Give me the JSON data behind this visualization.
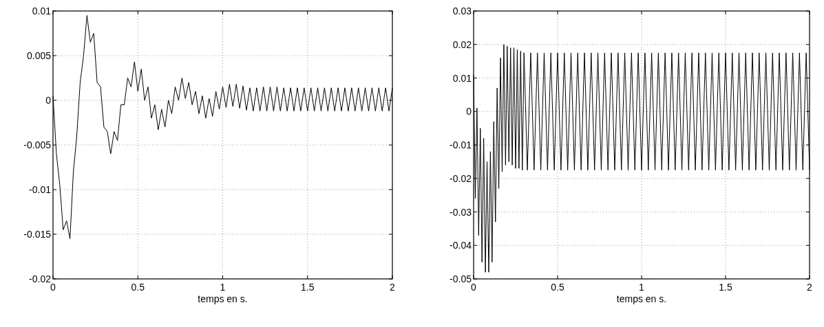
{
  "chart_data": [
    {
      "type": "line",
      "xlabel": "temps en s.",
      "xlim": [
        0,
        2
      ],
      "xticks": [
        0,
        0.5,
        1,
        1.5,
        2
      ],
      "ylim": [
        -0.02,
        0.01
      ],
      "yticks": [
        -0.02,
        -0.015,
        -0.01,
        -0.005,
        0,
        0.005,
        0.01
      ],
      "grid": true,
      "line_style": "solid",
      "series": [
        {
          "color": "#000000",
          "x": [
            0,
            0.02,
            0.04,
            0.06,
            0.08,
            0.1,
            0.12,
            0.14,
            0.16,
            0.18,
            0.2,
            0.22,
            0.24,
            0.26,
            0.28,
            0.3,
            0.32,
            0.34,
            0.36,
            0.38,
            0.4,
            0.42,
            0.44,
            0.46,
            0.48,
            0.5,
            0.52,
            0.54,
            0.56,
            0.58,
            0.6,
            0.62,
            0.64,
            0.66,
            0.68,
            0.7,
            0.72,
            0.74,
            0.76,
            0.78,
            0.8,
            0.82,
            0.84,
            0.86,
            0.88,
            0.9,
            0.92,
            0.94,
            0.96,
            0.98,
            1,
            1.02,
            1.04,
            1.06,
            1.08,
            1.1,
            1.12,
            1.14,
            1.16,
            1.18,
            1.2,
            1.22,
            1.24,
            1.26,
            1.28,
            1.3,
            1.32,
            1.34,
            1.36,
            1.38,
            1.4,
            1.42,
            1.44,
            1.46,
            1.48,
            1.5,
            1.52,
            1.54,
            1.56,
            1.58,
            1.6,
            1.62,
            1.64,
            1.66,
            1.68,
            1.7,
            1.72,
            1.74,
            1.76,
            1.78,
            1.8,
            1.82,
            1.84,
            1.86,
            1.88,
            1.9,
            1.92,
            1.94,
            1.96,
            1.98,
            2
          ],
          "values": [
            0.0005,
            -0.006,
            -0.0095,
            -0.0145,
            -0.0135,
            -0.0155,
            -0.008,
            -0.004,
            0.002,
            0.005,
            0.0095,
            0.0065,
            0.0075,
            0.002,
            0.0015,
            -0.003,
            -0.0035,
            -0.006,
            -0.0035,
            -0.0045,
            -0.0005,
            -0.0005,
            0.0025,
            0.0015,
            0.0043,
            0.001,
            0.0035,
            0,
            0.0015,
            -0.002,
            -0.0005,
            -0.0033,
            -0.001,
            -0.003,
            0,
            -0.0015,
            0.0015,
            0,
            0.0025,
            0.0002,
            0.002,
            -0.0005,
            0.001,
            -0.0015,
            0.0005,
            -0.002,
            0.0002,
            -0.0018,
            0.001,
            -0.001,
            0.0015,
            -0.0008,
            0.0018,
            -0.0007,
            0.0018,
            -0.0009,
            0.0016,
            -0.0011,
            0.0014,
            -0.0012,
            0.0014,
            -0.0012,
            0.0015,
            -0.0012,
            0.0015,
            -0.0012,
            0.0015,
            -0.0012,
            0.0014,
            -0.0012,
            0.0014,
            -0.0012,
            0.0014,
            -0.0012,
            0.0014,
            -0.0012,
            0.0014,
            -0.0012,
            0.0014,
            -0.0012,
            0.0014,
            -0.0012,
            0.0014,
            -0.0012,
            0.0014,
            -0.0012,
            0.0014,
            -0.0012,
            0.0014,
            -0.0012,
            0.0014,
            -0.0012,
            0.0014,
            -0.0012,
            0.0014,
            -0.0012,
            0.0014,
            -0.0012,
            0.0014,
            -0.0012,
            0.0014
          ]
        }
      ]
    },
    {
      "type": "line",
      "xlabel": "temps en s.",
      "xlim": [
        0,
        2
      ],
      "xticks": [
        0,
        0.5,
        1,
        1.5,
        2
      ],
      "ylim": [
        -0.05,
        0.03
      ],
      "yticks": [
        -0.05,
        -0.04,
        -0.03,
        -0.02,
        -0.01,
        0,
        0.01,
        0.02,
        0.03
      ],
      "grid": true,
      "line_style": "solid",
      "series": [
        {
          "color": "#000000",
          "x": [
            0,
            0.01,
            0.02,
            0.03,
            0.04,
            0.05,
            0.06,
            0.07,
            0.08,
            0.09,
            0.1,
            0.11,
            0.12,
            0.13,
            0.14,
            0.15,
            0.16,
            0.17,
            0.18,
            0.19,
            0.2,
            0.21,
            0.22,
            0.23,
            0.24,
            0.25,
            0.26,
            0.27,
            0.28,
            0.29,
            0.3,
            0.32,
            0.34,
            0.36,
            0.38,
            0.4,
            0.42,
            0.44,
            0.46,
            0.48,
            0.5,
            0.52,
            0.54,
            0.56,
            0.58,
            0.6,
            0.62,
            0.64,
            0.66,
            0.68,
            0.7,
            0.72,
            0.74,
            0.76,
            0.78,
            0.8,
            0.82,
            0.84,
            0.86,
            0.88,
            0.9,
            0.92,
            0.94,
            0.96,
            0.98,
            1,
            1.02,
            1.04,
            1.06,
            1.08,
            1.1,
            1.12,
            1.14,
            1.16,
            1.18,
            1.2,
            1.22,
            1.24,
            1.26,
            1.28,
            1.3,
            1.32,
            1.34,
            1.36,
            1.38,
            1.4,
            1.42,
            1.44,
            1.46,
            1.48,
            1.5,
            1.52,
            1.54,
            1.56,
            1.58,
            1.6,
            1.62,
            1.64,
            1.66,
            1.68,
            1.7,
            1.72,
            1.74,
            1.76,
            1.78,
            1.8,
            1.82,
            1.84,
            1.86,
            1.88,
            1.9,
            1.92,
            1.94,
            1.96,
            1.98,
            2
          ],
          "values": [
            0.011,
            -0.026,
            0.001,
            -0.037,
            -0.005,
            -0.045,
            -0.008,
            -0.048,
            -0.015,
            -0.048,
            -0.012,
            -0.045,
            -0.003,
            -0.033,
            0.007,
            -0.023,
            0.016,
            -0.018,
            0.02,
            -0.016,
            0.0195,
            -0.015,
            0.019,
            -0.016,
            0.019,
            -0.017,
            0.0185,
            -0.017,
            0.018,
            -0.0175,
            0.0175,
            -0.0175,
            0.0175,
            -0.0175,
            0.0175,
            -0.0175,
            0.0175,
            -0.0175,
            0.0175,
            -0.0175,
            0.0175,
            -0.0175,
            0.0175,
            -0.0175,
            0.0175,
            -0.0175,
            0.0175,
            -0.0175,
            0.0175,
            -0.0175,
            0.0175,
            -0.0175,
            0.0175,
            -0.0175,
            0.0175,
            -0.0175,
            0.0175,
            -0.0175,
            0.0175,
            -0.0175,
            0.0175,
            -0.0175,
            0.0175,
            -0.0175,
            0.0175,
            -0.0175,
            0.0175,
            -0.0175,
            0.0175,
            -0.0175,
            0.0175,
            -0.0175,
            0.0175,
            -0.0175,
            0.0175,
            -0.0175,
            0.0175,
            -0.0175,
            0.0175,
            -0.0175,
            0.0175,
            -0.0175,
            0.0175,
            -0.0175,
            0.0175,
            -0.0175,
            0.0175,
            -0.0175,
            0.0175,
            -0.0175,
            0.0175,
            -0.0175,
            0.0175,
            -0.0175,
            0.0175,
            -0.0175,
            0.0175,
            -0.0175,
            0.0175,
            -0.0175,
            0.0175,
            -0.0175,
            0.0175,
            -0.0175,
            0.0175,
            -0.0175,
            0.0175,
            -0.0175,
            0.0175,
            -0.0175,
            0.0175,
            -0.0175,
            0.0175,
            -0.0175,
            0.0175,
            -0.0175
          ]
        }
      ]
    }
  ]
}
